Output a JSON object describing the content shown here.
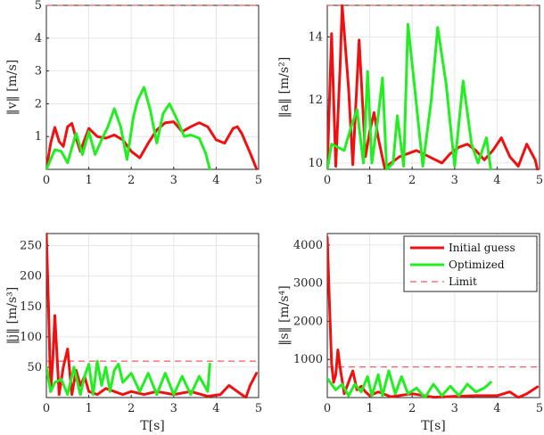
{
  "colors": {
    "initial": "#ee1111",
    "optimized": "#22ee22",
    "limit": "#ee3333",
    "grid": "#e6e6e6",
    "axis": "#262626"
  },
  "legend": {
    "placement": "top-right",
    "entries": [
      "Initial guess",
      "Optimized",
      "Limit"
    ]
  },
  "chart_data": [
    {
      "type": "line",
      "ylabel": "‖v‖ [m/s]",
      "xlabel": "",
      "xlim": [
        0,
        5
      ],
      "ylim": [
        0,
        5
      ],
      "xticks": [
        "0",
        "1",
        "2",
        "3",
        "4",
        "5"
      ],
      "yticks": [
        "1",
        "2",
        "3",
        "4",
        "5"
      ],
      "ytick_values": [
        1,
        2,
        3,
        4,
        5
      ],
      "grid": true,
      "limit": 5,
      "series": [
        {
          "name": "Initial guess",
          "x": [
            0,
            0.1,
            0.2,
            0.3,
            0.4,
            0.5,
            0.6,
            0.7,
            0.8,
            0.9,
            1.0,
            1.2,
            1.4,
            1.6,
            1.8,
            2.0,
            2.2,
            2.4,
            2.6,
            2.8,
            3.0,
            3.2,
            3.4,
            3.6,
            3.8,
            4.0,
            4.2,
            4.4,
            4.5,
            4.6,
            4.8,
            4.95
          ],
          "y": [
            0,
            0.8,
            1.28,
            0.85,
            0.7,
            1.3,
            1.4,
            0.95,
            0.55,
            0.9,
            1.25,
            1.0,
            0.95,
            1.05,
            0.9,
            0.55,
            0.35,
            0.8,
            1.2,
            1.42,
            1.45,
            1.15,
            1.3,
            1.42,
            1.3,
            0.9,
            0.8,
            1.25,
            1.3,
            1.1,
            0.5,
            0.02
          ]
        },
        {
          "name": "Optimized",
          "x": [
            0,
            0.2,
            0.35,
            0.5,
            0.7,
            0.85,
            1.0,
            1.15,
            1.3,
            1.45,
            1.6,
            1.75,
            1.9,
            2.05,
            2.15,
            2.3,
            2.45,
            2.6,
            2.75,
            2.9,
            3.05,
            3.25,
            3.4,
            3.6,
            3.75,
            3.85
          ],
          "y": [
            0,
            0.6,
            0.55,
            0.2,
            1.1,
            0.45,
            1.15,
            0.45,
            0.9,
            1.3,
            1.85,
            1.3,
            0.3,
            1.6,
            2.1,
            2.5,
            1.8,
            0.8,
            1.7,
            2.0,
            1.6,
            1.0,
            1.05,
            0.95,
            0.5,
            0.0
          ]
        }
      ]
    },
    {
      "type": "line",
      "ylabel": "‖a‖ [m/s²]",
      "xlabel": "",
      "xlim": [
        0,
        5
      ],
      "ylim": [
        9.8,
        15
      ],
      "xticks": [
        "0",
        "1",
        "2",
        "3",
        "4",
        "5"
      ],
      "yticks": [
        "10",
        "12",
        "14"
      ],
      "ytick_values": [
        10,
        12,
        14
      ],
      "grid": true,
      "limit": 15,
      "series": [
        {
          "name": "Initial guess",
          "x": [
            0,
            0.1,
            0.2,
            0.3,
            0.35,
            0.5,
            0.6,
            0.75,
            0.9,
            1.0,
            1.1,
            1.2,
            1.35,
            1.5,
            1.7,
            1.9,
            2.1,
            2.4,
            2.7,
            2.9,
            3.1,
            3.3,
            3.5,
            3.7,
            3.9,
            4.1,
            4.3,
            4.5,
            4.7,
            4.9,
            4.95
          ],
          "y": [
            9.8,
            14.1,
            9.9,
            13.0,
            15.0,
            12.4,
            9.95,
            13.9,
            10.2,
            11.0,
            11.6,
            10.8,
            9.85,
            10.0,
            10.2,
            10.3,
            10.4,
            10.2,
            10.0,
            10.3,
            10.5,
            10.6,
            10.4,
            10.1,
            10.4,
            10.8,
            10.2,
            9.9,
            10.6,
            10.1,
            9.8
          ]
        },
        {
          "name": "Optimized",
          "x": [
            0,
            0.1,
            0.25,
            0.4,
            0.55,
            0.7,
            0.85,
            0.95,
            1.05,
            1.2,
            1.3,
            1.4,
            1.55,
            1.65,
            1.8,
            1.9,
            2.05,
            2.25,
            2.45,
            2.6,
            2.8,
            3.0,
            3.2,
            3.4,
            3.55,
            3.75,
            3.85
          ],
          "y": [
            9.8,
            10.6,
            10.5,
            10.4,
            11.1,
            11.7,
            10.0,
            12.9,
            10.0,
            11.5,
            12.7,
            9.8,
            10.0,
            11.5,
            9.9,
            14.4,
            12.5,
            9.9,
            12.0,
            14.3,
            12.5,
            9.9,
            12.6,
            10.6,
            10.0,
            10.8,
            9.8
          ]
        }
      ]
    },
    {
      "type": "line",
      "ylabel": "‖j‖ [m/s³]",
      "xlabel": "T[s]",
      "xlim": [
        0,
        5
      ],
      "ylim": [
        0,
        270
      ],
      "xticks": [
        "0",
        "1",
        "2",
        "3",
        "4",
        "5"
      ],
      "yticks": [
        "50",
        "100",
        "150",
        "200",
        "250"
      ],
      "ytick_values": [
        50,
        100,
        150,
        200,
        250
      ],
      "grid": true,
      "limit": 60,
      "series": [
        {
          "name": "Initial guess",
          "x": [
            0,
            0.05,
            0.1,
            0.15,
            0.2,
            0.3,
            0.4,
            0.5,
            0.6,
            0.7,
            0.8,
            0.9,
            1.0,
            1.2,
            1.4,
            1.6,
            1.8,
            2.0,
            2.3,
            2.6,
            3.0,
            3.4,
            3.8,
            4.1,
            4.3,
            4.5,
            4.7,
            4.8,
            4.95
          ],
          "y": [
            270,
            150,
            10,
            60,
            135,
            5,
            50,
            80,
            5,
            45,
            20,
            35,
            10,
            5,
            15,
            10,
            5,
            10,
            5,
            10,
            5,
            10,
            2,
            5,
            20,
            10,
            0,
            20,
            40
          ]
        },
        {
          "name": "Optimized",
          "x": [
            0,
            0.1,
            0.2,
            0.35,
            0.5,
            0.65,
            0.8,
            0.9,
            1.0,
            1.1,
            1.2,
            1.3,
            1.4,
            1.5,
            1.6,
            1.7,
            1.8,
            2.0,
            2.2,
            2.4,
            2.6,
            2.8,
            3.0,
            3.2,
            3.4,
            3.6,
            3.8,
            3.85
          ],
          "y": [
            50,
            10,
            25,
            30,
            5,
            50,
            5,
            35,
            55,
            5,
            60,
            20,
            50,
            10,
            45,
            55,
            25,
            40,
            10,
            40,
            5,
            40,
            5,
            35,
            5,
            35,
            10,
            55
          ]
        }
      ]
    },
    {
      "type": "line",
      "ylabel": "‖s‖ [m/s⁴]",
      "xlabel": "T[s]",
      "xlim": [
        0,
        5
      ],
      "ylim": [
        0,
        4300
      ],
      "xticks": [
        "0",
        "1",
        "2",
        "3",
        "4",
        "5"
      ],
      "yticks": [
        "1000",
        "2000",
        "3000",
        "4000"
      ],
      "ytick_values": [
        1000,
        2000,
        3000,
        4000
      ],
      "grid": true,
      "limit": 800,
      "series": [
        {
          "name": "Initial guess",
          "x": [
            0,
            0.05,
            0.1,
            0.15,
            0.2,
            0.25,
            0.3,
            0.4,
            0.5,
            0.6,
            0.7,
            0.8,
            0.9,
            1.0,
            1.2,
            1.5,
            2.0,
            2.5,
            3.0,
            3.5,
            4.0,
            4.3,
            4.5,
            4.7,
            4.95
          ],
          "y": [
            4200,
            2500,
            900,
            400,
            600,
            1250,
            800,
            100,
            400,
            700,
            200,
            300,
            150,
            50,
            150,
            20,
            100,
            10,
            30,
            50,
            50,
            150,
            0,
            100,
            280
          ]
        },
        {
          "name": "Optimized",
          "x": [
            0,
            0.2,
            0.35,
            0.5,
            0.65,
            0.8,
            0.95,
            1.05,
            1.2,
            1.3,
            1.45,
            1.6,
            1.75,
            1.9,
            2.1,
            2.3,
            2.5,
            2.7,
            2.9,
            3.1,
            3.3,
            3.5,
            3.7,
            3.85
          ],
          "y": [
            500,
            200,
            350,
            50,
            350,
            150,
            550,
            50,
            600,
            50,
            700,
            100,
            550,
            100,
            250,
            0,
            350,
            50,
            300,
            50,
            350,
            150,
            250,
            400
          ]
        }
      ]
    }
  ]
}
